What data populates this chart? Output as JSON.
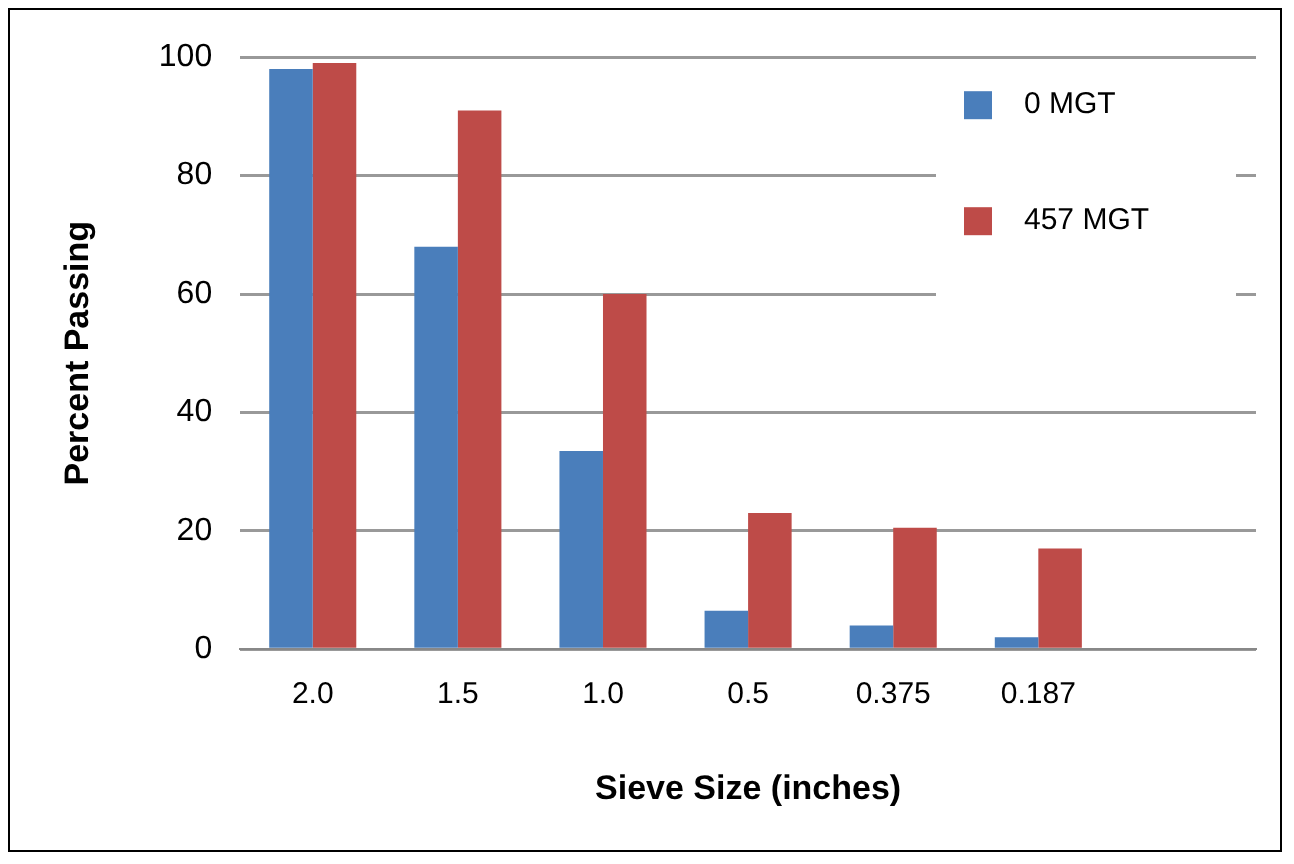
{
  "chart_data": {
    "type": "bar",
    "xlabel": "Sieve Size (inches)",
    "ylabel": "Percent Passing",
    "categories": [
      "2.0",
      "1.5",
      "1.0",
      "0.5",
      "0.375",
      "0.187",
      null
    ],
    "series": [
      {
        "name": "0 MGT",
        "color": "#4a7ebb",
        "values": [
          98,
          68,
          33.5,
          6.5,
          4,
          2,
          null
        ]
      },
      {
        "name": "457 MGT",
        "color": "#be4b48",
        "values": [
          99,
          91,
          60,
          23,
          20.5,
          17,
          null
        ]
      }
    ],
    "ylim": [
      0,
      100
    ],
    "yticks": [
      0,
      20,
      40,
      60,
      80,
      100
    ],
    "grid": "y",
    "legend": "top right"
  }
}
